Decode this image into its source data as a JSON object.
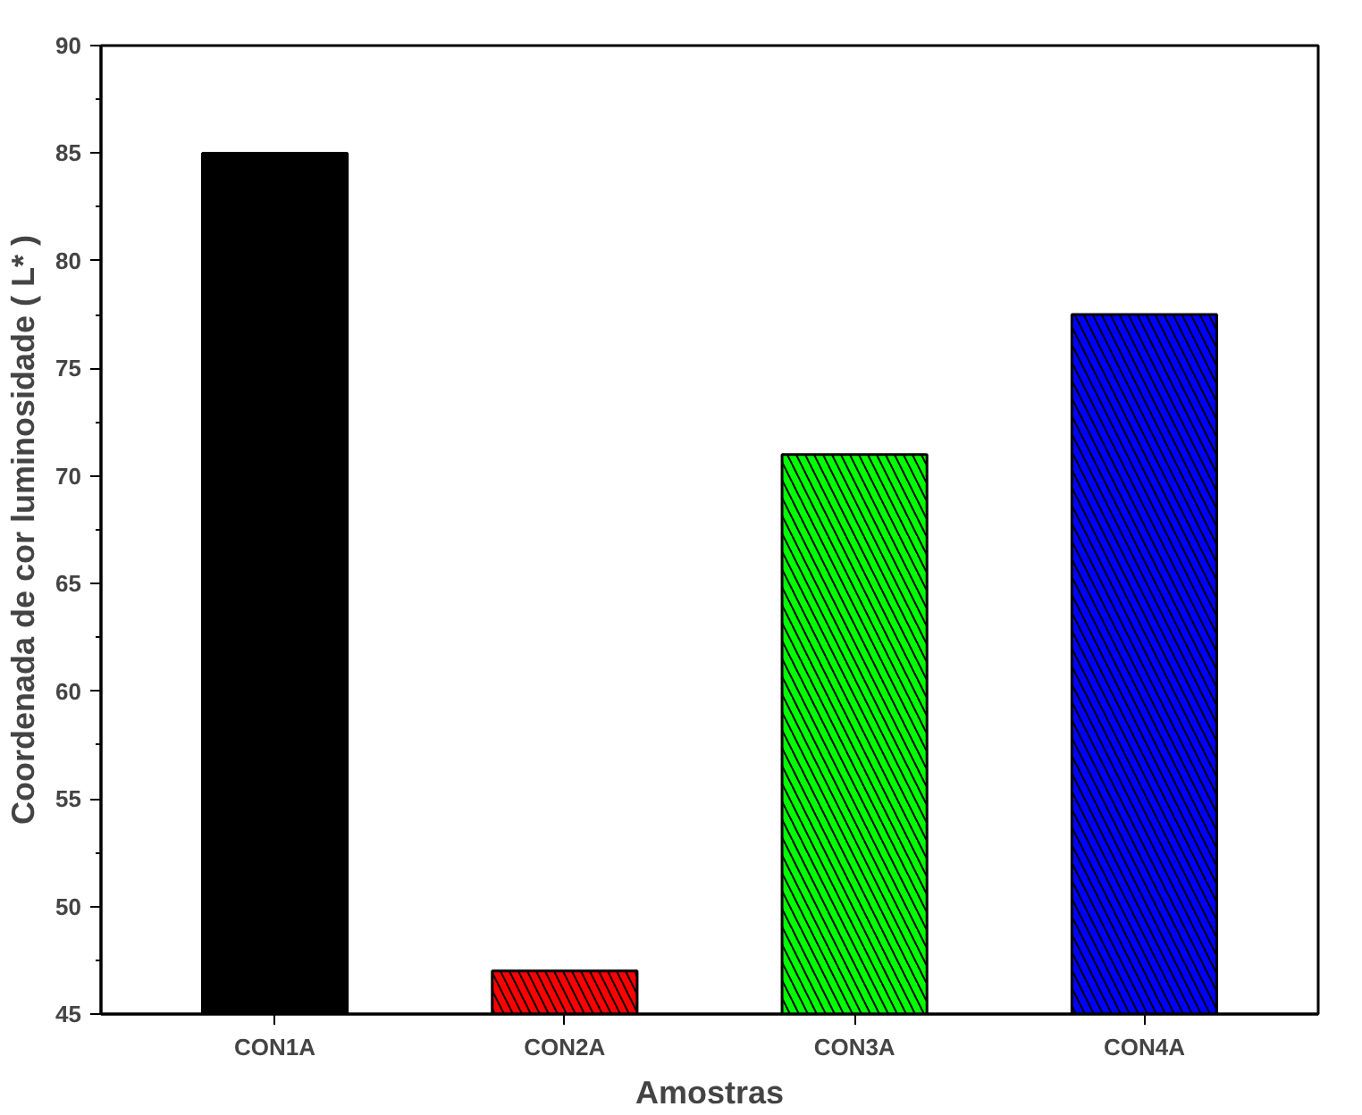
{
  "chart_data": {
    "type": "bar",
    "xlabel": "Amostras",
    "ylabel": "Coordenada de cor luminosidade ( L* )",
    "categories": [
      "CON1A",
      "CON2A",
      "CON3A",
      "CON4A"
    ],
    "values": [
      85,
      47,
      71,
      77.5
    ],
    "colors": [
      "#000000",
      "#ff0000",
      "#00ff00",
      "#0000ff"
    ],
    "ylim": [
      45,
      90
    ],
    "yticks": [
      45,
      50,
      55,
      60,
      65,
      70,
      75,
      80,
      85,
      90
    ]
  }
}
